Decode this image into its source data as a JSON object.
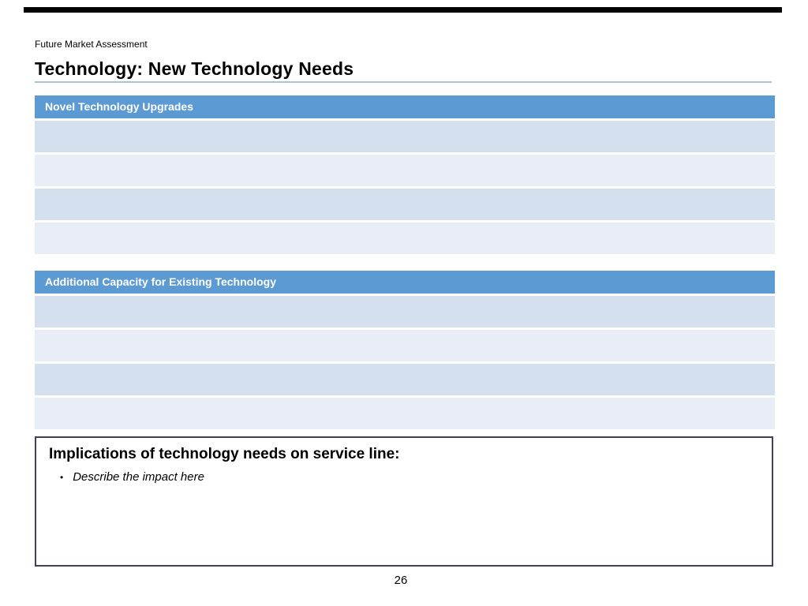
{
  "slide": {
    "eyebrow": "Future Market Assessment",
    "title": "Technology: New Technology Needs",
    "page_number": "26"
  },
  "tables": [
    {
      "header": "Novel Technology Upgrades",
      "rows": [
        "",
        "",
        "",
        ""
      ]
    },
    {
      "header": "Additional Capacity for Existing Technology",
      "rows": [
        "",
        "",
        "",
        ""
      ]
    }
  ],
  "implications": {
    "heading": "Implications of technology needs on service line:",
    "bullet_marker": "•",
    "bullets": [
      "Describe the impact here"
    ]
  },
  "colors": {
    "top_bar": "#000000",
    "header_blue": "#5b9ad3",
    "row_dark": "#d5e0ee",
    "row_light": "#e9edf6",
    "title_underline": "#a9c2da",
    "box_border": "#3f4156",
    "header_text": "#ffffff",
    "body_text": "#000000"
  }
}
